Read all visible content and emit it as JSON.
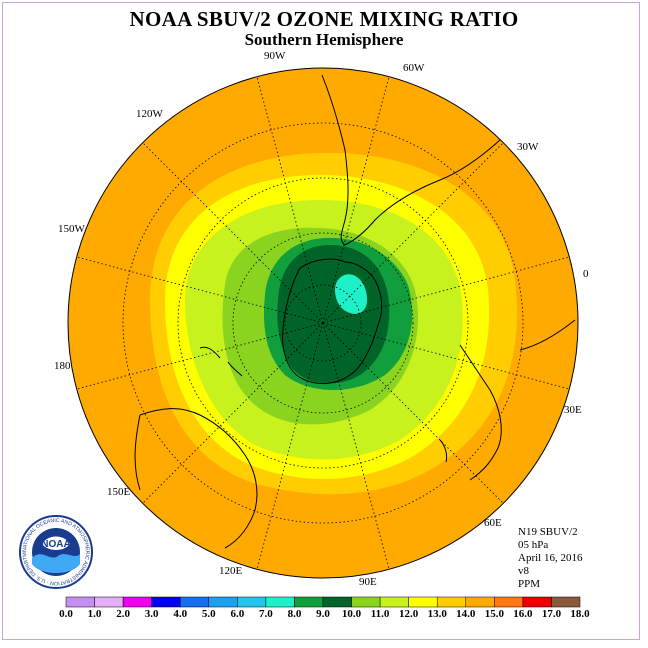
{
  "title": "NOAA SBUV/2 OZONE MIXING RATIO",
  "subtitle": "Southern Hemisphere",
  "longitude_labels": [
    "90W",
    "60W",
    "30W",
    "0",
    "30E",
    "60E",
    "90E",
    "120E",
    "150E",
    "180",
    "150W",
    "120W"
  ],
  "info": {
    "satellite": "N19 SBUV/2",
    "level": "05 hPa",
    "date": "April 16, 2016",
    "version": "v8",
    "units": "PPM"
  },
  "logo": {
    "text": "NOAA",
    "ring_text": "NATIONAL OCEANIC AND ATMOSPHERIC ADMINISTRATION · U.S. DEPARTMENT OF COMMERCE"
  },
  "legend": {
    "ticks": [
      "0.0",
      "1.0",
      "2.0",
      "3.0",
      "4.0",
      "5.0",
      "6.0",
      "7.0",
      "8.0",
      "9.0",
      "10.0",
      "11.0",
      "12.0",
      "13.0",
      "14.0",
      "15.0",
      "16.0",
      "17.0",
      "18.0"
    ],
    "colors": [
      "#c38ff2",
      "#e2aef5",
      "#ee00ee",
      "#0000ee",
      "#1470ee",
      "#1ca0f0",
      "#26c3ee",
      "#1ef0c8",
      "#119e3c",
      "#006328",
      "#8ad31e",
      "#c8f21e",
      "#ffff00",
      "#ffcd00",
      "#ffaa00",
      "#ff7814",
      "#ee0000",
      "#8b5a3c"
    ]
  },
  "map_colors": {
    "ocean_outer": "#ffaa00",
    "band_14": "#ffcd00",
    "band_13": "#ffff00",
    "band_12": "#c8f21e",
    "band_11": "#8ad31e",
    "band_9": "#119e3c",
    "band_8": "#006328",
    "band_7": "#1ef0c8"
  }
}
